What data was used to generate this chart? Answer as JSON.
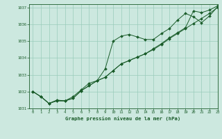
{
  "title": "Graphe pression niveau de la mer (hPa)",
  "bg_color": "#cce8df",
  "grid_color": "#99ccbb",
  "line_color": "#1a5c2a",
  "xlim": [
    -0.5,
    23
  ],
  "ylim": [
    1031,
    1037.2
  ],
  "xticks": [
    0,
    1,
    2,
    3,
    4,
    5,
    6,
    7,
    8,
    9,
    10,
    11,
    12,
    13,
    14,
    15,
    16,
    17,
    18,
    19,
    20,
    21,
    22,
    23
  ],
  "yticks": [
    1031,
    1032,
    1033,
    1034,
    1035,
    1036,
    1037
  ],
  "series1_x": [
    0,
    1,
    2,
    3,
    4,
    5,
    6,
    7,
    8,
    9,
    10,
    11,
    12,
    13,
    14,
    15,
    16,
    17,
    18,
    19,
    20,
    21,
    22,
    23
  ],
  "series1_y": [
    1032.0,
    1031.7,
    1031.3,
    1031.5,
    1031.45,
    1031.7,
    1032.1,
    1032.5,
    1032.65,
    1032.85,
    1033.25,
    1033.65,
    1033.85,
    1034.05,
    1034.25,
    1034.5,
    1034.8,
    1035.15,
    1035.45,
    1035.75,
    1036.05,
    1036.35,
    1036.65,
    1037.0
  ],
  "series2_x": [
    0,
    1,
    2,
    3,
    4,
    5,
    6,
    7,
    8,
    9,
    10,
    11,
    12,
    13,
    14,
    15,
    16,
    17,
    18,
    19,
    20,
    21,
    22,
    23
  ],
  "series2_y": [
    1032.0,
    1031.7,
    1031.3,
    1031.45,
    1031.45,
    1031.6,
    1032.05,
    1032.35,
    1032.65,
    1033.35,
    1035.0,
    1035.3,
    1035.4,
    1035.25,
    1035.1,
    1035.1,
    1035.45,
    1035.75,
    1036.25,
    1036.65,
    1036.45,
    1036.1,
    1036.5,
    1037.05
  ],
  "series3_x": [
    0,
    1,
    2,
    3,
    4,
    5,
    6,
    7,
    8,
    9,
    10,
    11,
    12,
    13,
    14,
    15,
    16,
    17,
    18,
    19,
    20,
    21,
    22,
    23
  ],
  "series3_y": [
    1032.0,
    1031.7,
    1031.3,
    1031.45,
    1031.45,
    1031.6,
    1032.05,
    1032.35,
    1032.65,
    1032.85,
    1033.25,
    1033.65,
    1033.85,
    1034.05,
    1034.25,
    1034.55,
    1034.85,
    1035.2,
    1035.5,
    1035.8,
    1036.8,
    1036.7,
    1036.85,
    1037.1
  ]
}
